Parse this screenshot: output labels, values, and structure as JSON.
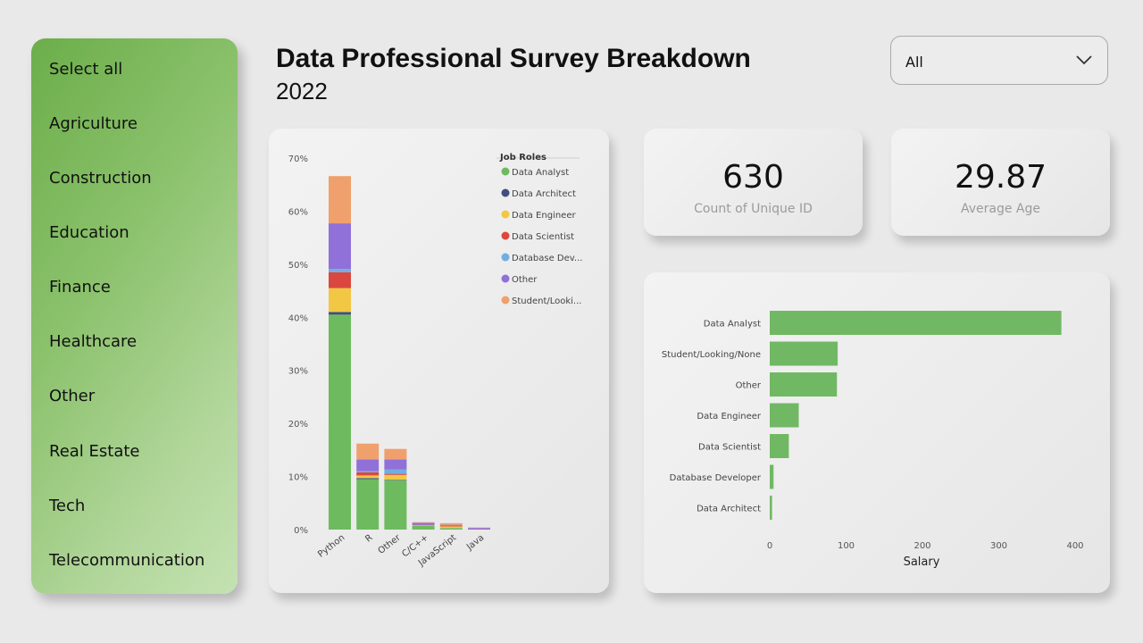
{
  "sidebar": {
    "items": [
      {
        "label": "Select all"
      },
      {
        "label": "Agriculture"
      },
      {
        "label": "Construction"
      },
      {
        "label": "Education"
      },
      {
        "label": "Finance"
      },
      {
        "label": "Healthcare"
      },
      {
        "label": "Other"
      },
      {
        "label": "Real Estate"
      },
      {
        "label": "Tech"
      },
      {
        "label": "Telecommunication"
      }
    ]
  },
  "header": {
    "title": "Data Professional Survey Breakdown",
    "subtitle": "2022"
  },
  "filter": {
    "selected": "All",
    "icon": "chevron-down-icon"
  },
  "kpis": [
    {
      "value": "630",
      "label": "Count of Unique ID"
    },
    {
      "value": "29.87",
      "label": "Average Age"
    }
  ],
  "colors": {
    "accent": "#71b864",
    "sidebar_start": "#6cae4a",
    "sidebar_end": "#c4e2b2"
  },
  "chart_data": [
    {
      "type": "bar",
      "stacked": true,
      "orientation": "vertical",
      "categories": [
        "Python",
        "R",
        "Other",
        "C/C++",
        "JavaScript",
        "Java"
      ],
      "legend_title": "Job Roles",
      "legend_position": "top-right",
      "ylim": [
        0,
        70
      ],
      "yticks": [
        "0%",
        "10%",
        "20%",
        "30%",
        "40%",
        "50%",
        "60%",
        "70%"
      ],
      "series": [
        {
          "name": "Data Analyst",
          "color": "#6dbb5e",
          "values": [
            40.5,
            9.5,
            9.3,
            0.7,
            0.3,
            0.0
          ]
        },
        {
          "name": "Data Architect",
          "color": "#3f4f7f",
          "values": [
            0.5,
            0.2,
            0.1,
            0.0,
            0.0,
            0.0
          ]
        },
        {
          "name": "Data Engineer",
          "color": "#f2c744",
          "values": [
            4.5,
            0.5,
            0.9,
            0.1,
            0.3,
            0.0
          ]
        },
        {
          "name": "Data Scientist",
          "color": "#d9473f",
          "values": [
            3.0,
            0.6,
            0.2,
            0.1,
            0.1,
            0.0
          ]
        },
        {
          "name": "Database Dev...",
          "color": "#72aee0",
          "values": [
            0.6,
            0.2,
            0.8,
            0.0,
            0.0,
            0.0
          ]
        },
        {
          "name": "Other",
          "color": "#9070d9",
          "values": [
            8.6,
            2.2,
            1.9,
            0.4,
            0.2,
            0.3
          ]
        },
        {
          "name": "Student/Looki...",
          "color": "#f0a06c",
          "values": [
            8.9,
            3.0,
            2.0,
            0.1,
            0.3,
            0.1
          ]
        }
      ],
      "grid": false
    },
    {
      "type": "bar",
      "orientation": "horizontal",
      "categories": [
        "Data Analyst",
        "Student/Looking/None",
        "Other",
        "Data Engineer",
        "Data Scientist",
        "Database Developer",
        "Data Architect"
      ],
      "values": [
        382,
        89,
        88,
        38,
        25,
        5,
        3
      ],
      "color": "#71b864",
      "xlabel": "Salary",
      "xlim": [
        0,
        400
      ],
      "xticks": [
        "0",
        "100",
        "200",
        "300",
        "400"
      ],
      "grid": false
    }
  ]
}
